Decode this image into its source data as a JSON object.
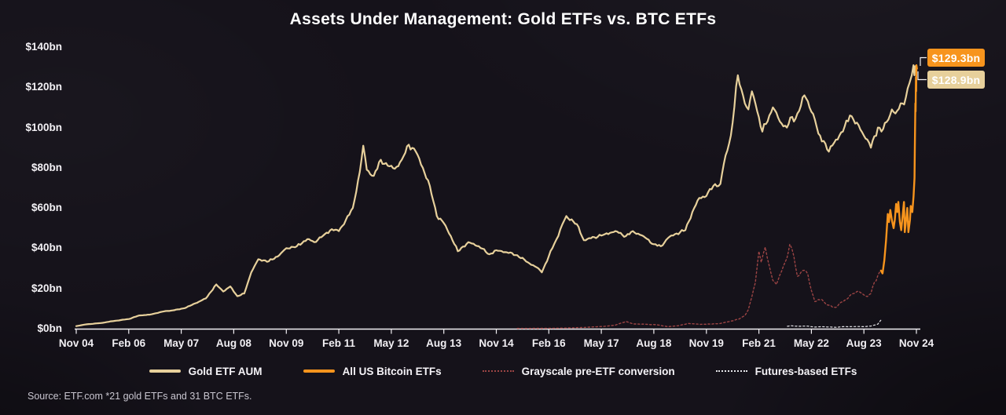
{
  "page": {
    "background": "#15121a"
  },
  "header": {
    "title": "Assets Under Management: Gold ETFs vs. BTC ETFs"
  },
  "footer": {
    "source": "Source: ETF.com *21 gold ETFs and 31 BTC ETFs."
  },
  "callouts": [
    {
      "text": "$129.3bn",
      "bg": "#f7941d",
      "color": "#ffffff",
      "series": "All US Bitcoin ETFs"
    },
    {
      "text": "$128.9bn",
      "bg": "#e7d09b",
      "color": "#ffffff",
      "series": "Gold ETF AUM"
    }
  ],
  "chart_data": {
    "type": "line",
    "title": "Assets Under Management: Gold ETFs vs. BTC ETFs",
    "xlabel": "",
    "ylabel": "",
    "ylim": [
      0,
      140
    ],
    "y_tick_step": 20,
    "y_tick_labels": [
      "$140bn",
      "$120bn",
      "$100bn",
      "$80bn",
      "$60bn",
      "$40bn",
      "$20bn",
      "$0bn"
    ],
    "grid": false,
    "legend_position": "bottom",
    "axis_color": "#f2f0f4",
    "x_ticks": [
      {
        "label": "Nov 04",
        "date": "2004-11"
      },
      {
        "label": "Feb 06",
        "date": "2006-02"
      },
      {
        "label": "May 07",
        "date": "2007-05"
      },
      {
        "label": "Aug 08",
        "date": "2008-08"
      },
      {
        "label": "Nov 09",
        "date": "2009-11"
      },
      {
        "label": "Feb 11",
        "date": "2011-02"
      },
      {
        "label": "May 12",
        "date": "2012-05"
      },
      {
        "label": "Aug 13",
        "date": "2013-08"
      },
      {
        "label": "Nov 14",
        "date": "2014-11"
      },
      {
        "label": "Feb 16",
        "date": "2016-02"
      },
      {
        "label": "May 17",
        "date": "2017-05"
      },
      {
        "label": "Aug 18",
        "date": "2018-08"
      },
      {
        "label": "Nov 19",
        "date": "2019-11"
      },
      {
        "label": "Feb 21",
        "date": "2021-02"
      },
      {
        "label": "May 22",
        "date": "2022-05"
      },
      {
        "label": "Aug 23",
        "date": "2023-08"
      },
      {
        "label": "Nov 24",
        "date": "2024-11"
      }
    ],
    "series": [
      {
        "name": "Gold ETF AUM",
        "color": "#e7d09b",
        "style": "solid",
        "width": 2.2,
        "jitter": 0.016,
        "z": 3,
        "points": [
          [
            "2004-11",
            1.3
          ],
          [
            "2005-02",
            2.2
          ],
          [
            "2005-06",
            2.8
          ],
          [
            "2005-10",
            3.9
          ],
          [
            "2006-02",
            4.8
          ],
          [
            "2006-05",
            6.6
          ],
          [
            "2006-08",
            7.0
          ],
          [
            "2006-12",
            8.6
          ],
          [
            "2007-03",
            9.2
          ],
          [
            "2007-06",
            10.2
          ],
          [
            "2007-09",
            12.6
          ],
          [
            "2007-12",
            15.0
          ],
          [
            "2008-03",
            22.0
          ],
          [
            "2008-05",
            18.5
          ],
          [
            "2008-07",
            21.0
          ],
          [
            "2008-09",
            16.2
          ],
          [
            "2008-11",
            17.5
          ],
          [
            "2009-01",
            28.0
          ],
          [
            "2009-03",
            34.5
          ],
          [
            "2009-06",
            33.5
          ],
          [
            "2009-09",
            36.5
          ],
          [
            "2009-11",
            40.0
          ],
          [
            "2010-02",
            41.0
          ],
          [
            "2010-05",
            44.5
          ],
          [
            "2010-07",
            43.0
          ],
          [
            "2010-10",
            47.0
          ],
          [
            "2010-12",
            49.5
          ],
          [
            "2011-02",
            48.5
          ],
          [
            "2011-04",
            54.0
          ],
          [
            "2011-06",
            60.0
          ],
          [
            "2011-08",
            78.0
          ],
          [
            "2011-09",
            91.0
          ],
          [
            "2011-10",
            79.0
          ],
          [
            "2011-12",
            76.0
          ],
          [
            "2012-02",
            84.0
          ],
          [
            "2012-04",
            81.0
          ],
          [
            "2012-06",
            79.5
          ],
          [
            "2012-08",
            84.0
          ],
          [
            "2012-10",
            91.5
          ],
          [
            "2012-12",
            88.0
          ],
          [
            "2013-02",
            80.0
          ],
          [
            "2013-04",
            71.0
          ],
          [
            "2013-06",
            56.0
          ],
          [
            "2013-08",
            52.5
          ],
          [
            "2013-10",
            46.0
          ],
          [
            "2013-12",
            38.5
          ],
          [
            "2014-03",
            43.0
          ],
          [
            "2014-06",
            41.0
          ],
          [
            "2014-09",
            37.0
          ],
          [
            "2014-11",
            39.0
          ],
          [
            "2015-02",
            38.0
          ],
          [
            "2015-05",
            36.5
          ],
          [
            "2015-08",
            33.0
          ],
          [
            "2015-11",
            30.0
          ],
          [
            "2015-12",
            28.0
          ],
          [
            "2016-03",
            40.0
          ],
          [
            "2016-07",
            56.0
          ],
          [
            "2016-10",
            52.0
          ],
          [
            "2016-12",
            44.0
          ],
          [
            "2017-03",
            45.5
          ],
          [
            "2017-06",
            47.0
          ],
          [
            "2017-09",
            48.5
          ],
          [
            "2017-12",
            46.0
          ],
          [
            "2018-02",
            48.5
          ],
          [
            "2018-05",
            46.0
          ],
          [
            "2018-08",
            42.0
          ],
          [
            "2018-10",
            41.0
          ],
          [
            "2018-12",
            45.0
          ],
          [
            "2019-02",
            47.0
          ],
          [
            "2019-05",
            49.0
          ],
          [
            "2019-07",
            58.0
          ],
          [
            "2019-09",
            65.0
          ],
          [
            "2019-11",
            66.0
          ],
          [
            "2020-01",
            71.0
          ],
          [
            "2020-03",
            72.0
          ],
          [
            "2020-04",
            82.0
          ],
          [
            "2020-06",
            96.0
          ],
          [
            "2020-08",
            126.0
          ],
          [
            "2020-09",
            119.0
          ],
          [
            "2020-10",
            112.0
          ],
          [
            "2020-11",
            109.0
          ],
          [
            "2020-12",
            118.0
          ],
          [
            "2021-01",
            112.0
          ],
          [
            "2021-03",
            98.0
          ],
          [
            "2021-05",
            106.0
          ],
          [
            "2021-06",
            110.0
          ],
          [
            "2021-08",
            103.0
          ],
          [
            "2021-10",
            100.0
          ],
          [
            "2021-11",
            105.0
          ],
          [
            "2021-12",
            103.0
          ],
          [
            "2022-01",
            107.0
          ],
          [
            "2022-03",
            116.0
          ],
          [
            "2022-04",
            113.0
          ],
          [
            "2022-06",
            104.0
          ],
          [
            "2022-07",
            97.0
          ],
          [
            "2022-09",
            92.0
          ],
          [
            "2022-10",
            88.0
          ],
          [
            "2022-12",
            94.0
          ],
          [
            "2023-02",
            98.0
          ],
          [
            "2023-04",
            106.0
          ],
          [
            "2023-05",
            104.0
          ],
          [
            "2023-07",
            99.0
          ],
          [
            "2023-09",
            94.0
          ],
          [
            "2023-10",
            90.0
          ],
          [
            "2023-12",
            100.0
          ],
          [
            "2024-01",
            98.0
          ],
          [
            "2024-03",
            104.0
          ],
          [
            "2024-04",
            109.0
          ],
          [
            "2024-05",
            107.0
          ],
          [
            "2024-07",
            112.0
          ],
          [
            "2024-08",
            115.0
          ],
          [
            "2024-09",
            122.0
          ],
          [
            "2024-10-05",
            126.0
          ],
          [
            "2024-10-20",
            131.0
          ],
          [
            "2024-10-28",
            126.0
          ],
          [
            "2024-11-05",
            130.5
          ],
          [
            "2024-11-15",
            128.9
          ]
        ]
      },
      {
        "name": "All US Bitcoin ETFs",
        "color": "#f7941d",
        "style": "solid",
        "width": 2.4,
        "jitter": 0.02,
        "z": 4,
        "points": [
          [
            "2024-01-11",
            28.9
          ],
          [
            "2024-01-25",
            27.5
          ],
          [
            "2024-02-10",
            34.0
          ],
          [
            "2024-02-25",
            44.0
          ],
          [
            "2024-03-10",
            57.0
          ],
          [
            "2024-03-20",
            53.0
          ],
          [
            "2024-04-01",
            59.0
          ],
          [
            "2024-04-15",
            54.0
          ],
          [
            "2024-04-30",
            50.0
          ],
          [
            "2024-05-10",
            54.0
          ],
          [
            "2024-05-21",
            62.0
          ],
          [
            "2024-06-01",
            58.0
          ],
          [
            "2024-06-10",
            63.0
          ],
          [
            "2024-06-24",
            53.0
          ],
          [
            "2024-07-05",
            49.0
          ],
          [
            "2024-07-20",
            58.0
          ],
          [
            "2024-07-29",
            63.0
          ],
          [
            "2024-08-05",
            48.0
          ],
          [
            "2024-08-20",
            56.0
          ],
          [
            "2024-08-27",
            60.0
          ],
          [
            "2024-09-06",
            48.0
          ],
          [
            "2024-09-20",
            54.0
          ],
          [
            "2024-09-27",
            61.0
          ],
          [
            "2024-10-10",
            58.0
          ],
          [
            "2024-10-21",
            66.0
          ],
          [
            "2024-10-29",
            75.0
          ],
          [
            "2024-11-01",
            90.0
          ],
          [
            "2024-11-06",
            112.0
          ],
          [
            "2024-11-08",
            108.0
          ],
          [
            "2024-11-11",
            125.0
          ],
          [
            "2024-11-13",
            118.0
          ],
          [
            "2024-11-15",
            131.0
          ],
          [
            "2024-11-20",
            129.3
          ]
        ]
      },
      {
        "name": "Grayscale pre-ETF conversion",
        "color": "#9c4444",
        "style": "dashed",
        "width": 1.4,
        "jitter": 0.035,
        "z": 2,
        "points": [
          [
            "2015-05",
            0.15
          ],
          [
            "2015-12",
            0.2
          ],
          [
            "2016-06",
            0.3
          ],
          [
            "2016-12",
            0.6
          ],
          [
            "2017-06",
            1.2
          ],
          [
            "2017-09",
            1.8
          ],
          [
            "2017-12",
            3.6
          ],
          [
            "2018-02",
            2.4
          ],
          [
            "2018-06",
            2.2
          ],
          [
            "2018-09",
            1.9
          ],
          [
            "2018-12",
            1.0
          ],
          [
            "2019-03",
            1.5
          ],
          [
            "2019-06",
            2.6
          ],
          [
            "2019-09",
            2.2
          ],
          [
            "2019-12",
            2.3
          ],
          [
            "2020-03",
            2.6
          ],
          [
            "2020-06",
            3.8
          ],
          [
            "2020-08",
            4.6
          ],
          [
            "2020-10",
            6.5
          ],
          [
            "2020-11",
            9.5
          ],
          [
            "2020-12",
            16.0
          ],
          [
            "2021-01",
            23.0
          ],
          [
            "2021-02-15",
            38.5
          ],
          [
            "2021-03-05",
            33.0
          ],
          [
            "2021-04-10",
            40.5
          ],
          [
            "2021-05",
            31.0
          ],
          [
            "2021-06",
            24.0
          ],
          [
            "2021-07",
            22.0
          ],
          [
            "2021-09",
            31.0
          ],
          [
            "2021-10",
            35.0
          ],
          [
            "2021-11-10",
            42.0
          ],
          [
            "2021-12",
            36.0
          ],
          [
            "2022-01",
            26.0
          ],
          [
            "2022-02",
            28.0
          ],
          [
            "2022-03-20",
            29.0
          ],
          [
            "2022-04",
            27.0
          ],
          [
            "2022-05",
            19.0
          ],
          [
            "2022-06",
            13.5
          ],
          [
            "2022-08",
            14.5
          ],
          [
            "2022-09",
            12.5
          ],
          [
            "2022-11",
            10.8
          ],
          [
            "2022-12",
            10.6
          ],
          [
            "2023-01",
            12.5
          ],
          [
            "2023-03",
            14.5
          ],
          [
            "2023-04",
            16.5
          ],
          [
            "2023-06",
            18.5
          ],
          [
            "2023-07",
            18.0
          ],
          [
            "2023-09",
            16.0
          ],
          [
            "2023-10",
            17.5
          ],
          [
            "2023-11",
            23.0
          ],
          [
            "2023-12",
            26.5
          ],
          [
            "2024-01-10",
            28.5
          ]
        ]
      },
      {
        "name": "Futures-based ETFs",
        "color": "#e6e6ea",
        "style": "dashed",
        "width": 1.2,
        "jitter": 0.05,
        "z": 1,
        "points": [
          [
            "2021-10-20",
            1.2
          ],
          [
            "2021-11",
            1.5
          ],
          [
            "2021-12",
            1.3
          ],
          [
            "2022-02",
            1.2
          ],
          [
            "2022-04",
            1.3
          ],
          [
            "2022-06",
            0.8
          ],
          [
            "2022-08",
            1.0
          ],
          [
            "2022-10",
            0.85
          ],
          [
            "2022-12",
            0.7
          ],
          [
            "2023-02",
            1.0
          ],
          [
            "2023-04",
            1.0
          ],
          [
            "2023-06",
            1.1
          ],
          [
            "2023-08",
            1.0
          ],
          [
            "2023-10",
            1.3
          ],
          [
            "2023-11",
            1.8
          ],
          [
            "2023-12",
            2.3
          ],
          [
            "2024-01-10",
            4.2
          ]
        ]
      }
    ]
  }
}
